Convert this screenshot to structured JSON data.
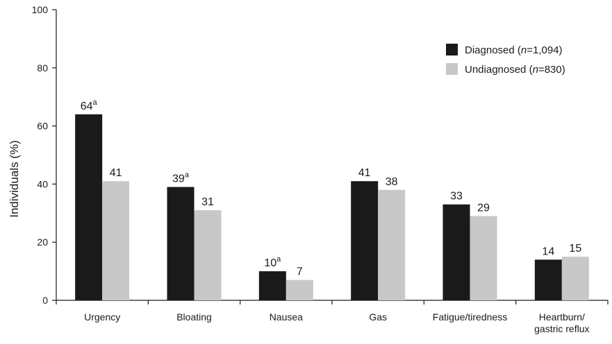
{
  "chart_data": {
    "type": "bar",
    "ylabel": "Individuals (%)",
    "xlabel": "",
    "ylim": [
      0,
      100
    ],
    "yticks": [
      0,
      20,
      40,
      60,
      80,
      100
    ],
    "grid": false,
    "legend_position": "top-right",
    "categories": [
      [
        "Urgency"
      ],
      [
        "Bloating"
      ],
      [
        "Nausea"
      ],
      [
        "Gas"
      ],
      [
        "Fatigue/tiredness"
      ],
      [
        "Heartburn/",
        "gastric reflux"
      ]
    ],
    "series": [
      {
        "name": "Diagnosed",
        "legend_n": "1,094",
        "color": "#1a1a1a",
        "values": [
          64,
          39,
          10,
          41,
          33,
          14
        ],
        "superscripts": [
          "a",
          "a",
          "a",
          "",
          "",
          ""
        ]
      },
      {
        "name": "Undiagnosed",
        "legend_n": "830",
        "color": "#c8c8c8",
        "values": [
          41,
          31,
          7,
          38,
          29,
          15
        ],
        "superscripts": [
          "",
          "",
          "",
          "",
          "",
          ""
        ]
      }
    ]
  }
}
